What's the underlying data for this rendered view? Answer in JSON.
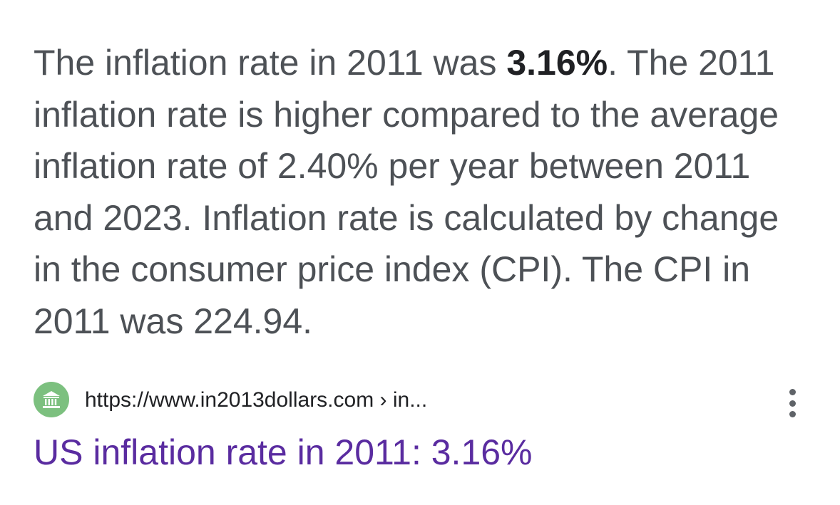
{
  "snippet": {
    "before_bold": "The inflation rate in 2011 was ",
    "bold": "3.16%",
    "after_bold": ". The 2011 inflation rate is higher compared to the average inflation rate of 2.40% per year between 2011 and 2023. Inflation rate is calculated by change in the consumer price index (CPI). The CPI in 2011 was 224.94."
  },
  "source": {
    "icon": "bank-building-icon",
    "url": "https://www.in2013dollars.com › in..."
  },
  "result": {
    "title": "US inflation rate in 2011: 3.16%"
  },
  "colors": {
    "snippet_text": "#4d5156",
    "title_visited": "#5a2ca0",
    "favicon_bg": "#7cc07f"
  }
}
